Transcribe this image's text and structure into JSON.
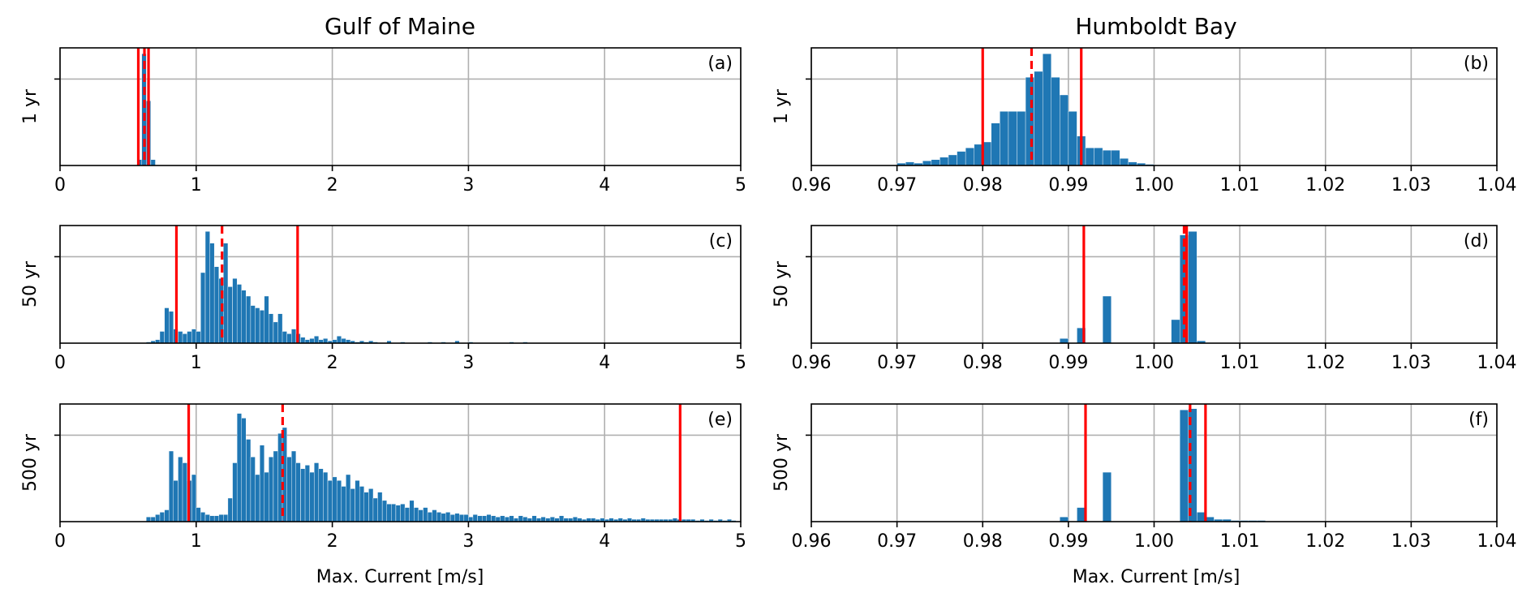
{
  "figure": {
    "columns": [
      "Gulf of Maine",
      "Humboldt Bay"
    ],
    "rows": [
      "1 yr",
      "50 yr",
      "500 yr"
    ],
    "xlabel": "Max. Current [m/s]"
  },
  "chart_data": [
    {
      "id": "a",
      "panel": "(a)",
      "location": "Gulf of Maine",
      "type": "bar",
      "ylabel": "1 yr",
      "xlim": [
        0,
        5
      ],
      "bin_width": 0.0333,
      "xticks": [
        0,
        1,
        2,
        3,
        4,
        5
      ],
      "xtick_labels": [
        "0",
        "1",
        "2",
        "3",
        "4",
        "5"
      ],
      "bar_color": "#1f77b4",
      "line_color": "#ff0000",
      "bins": [
        [
          0.567,
          0.05
        ],
        [
          0.6,
          0.95
        ],
        [
          0.633,
          0.55
        ],
        [
          0.667,
          0.05
        ]
      ],
      "solid_lines": [
        0.575,
        0.65
      ],
      "dashed_lines": [
        0.62
      ]
    },
    {
      "id": "b",
      "panel": "(b)",
      "location": "Humboldt Bay",
      "type": "bar",
      "ylabel": "1 yr",
      "xlim": [
        0.96,
        1.04
      ],
      "bin_width": 0.001,
      "xticks": [
        0.96,
        0.97,
        0.98,
        0.99,
        1.0,
        1.01,
        1.02,
        1.03,
        1.04
      ],
      "xtick_labels": [
        "0.96",
        "0.97",
        "0.98",
        "0.99",
        "1.00",
        "1.01",
        "1.02",
        "1.03",
        "1.04"
      ],
      "bar_color": "#1f77b4",
      "line_color": "#ff0000",
      "bins": [
        [
          0.97,
          0.02
        ],
        [
          0.971,
          0.03
        ],
        [
          0.972,
          0.02
        ],
        [
          0.973,
          0.04
        ],
        [
          0.974,
          0.05
        ],
        [
          0.975,
          0.07
        ],
        [
          0.976,
          0.09
        ],
        [
          0.977,
          0.12
        ],
        [
          0.978,
          0.15
        ],
        [
          0.979,
          0.18
        ],
        [
          0.98,
          0.2
        ],
        [
          0.981,
          0.36
        ],
        [
          0.982,
          0.46
        ],
        [
          0.983,
          0.46
        ],
        [
          0.984,
          0.46
        ],
        [
          0.985,
          0.75
        ],
        [
          0.986,
          0.8
        ],
        [
          0.987,
          0.95
        ],
        [
          0.988,
          0.75
        ],
        [
          0.989,
          0.6
        ],
        [
          0.99,
          0.46
        ],
        [
          0.991,
          0.25
        ],
        [
          0.992,
          0.15
        ],
        [
          0.993,
          0.15
        ],
        [
          0.994,
          0.13
        ],
        [
          0.995,
          0.13
        ],
        [
          0.996,
          0.06
        ],
        [
          0.997,
          0.03
        ],
        [
          0.998,
          0.02
        ],
        [
          0.999,
          0.01
        ]
      ],
      "solid_lines": [
        0.98,
        0.9915
      ],
      "dashed_lines": [
        0.9857
      ]
    },
    {
      "id": "c",
      "panel": "(c)",
      "location": "Gulf of Maine",
      "type": "bar",
      "ylabel": "50 yr",
      "xlim": [
        0,
        5
      ],
      "bin_width": 0.0333,
      "xticks": [
        0,
        1,
        2,
        3,
        4,
        5
      ],
      "xtick_labels": [
        "0",
        "1",
        "2",
        "3",
        "4",
        "5"
      ],
      "bar_color": "#1f77b4",
      "line_color": "#ff0000",
      "bins": [
        [
          0.633,
          0.01
        ],
        [
          0.667,
          0.02
        ],
        [
          0.7,
          0.03
        ],
        [
          0.733,
          0.1
        ],
        [
          0.767,
          0.3
        ],
        [
          0.8,
          0.27
        ],
        [
          0.833,
          0.12
        ],
        [
          0.867,
          0.1
        ],
        [
          0.9,
          0.08
        ],
        [
          0.933,
          0.1
        ],
        [
          0.967,
          0.12
        ],
        [
          1.0,
          0.1
        ],
        [
          1.033,
          0.6
        ],
        [
          1.067,
          0.95
        ],
        [
          1.1,
          0.85
        ],
        [
          1.133,
          0.65
        ],
        [
          1.167,
          0.55
        ],
        [
          1.2,
          0.85
        ],
        [
          1.233,
          0.48
        ],
        [
          1.267,
          0.55
        ],
        [
          1.3,
          0.5
        ],
        [
          1.333,
          0.45
        ],
        [
          1.367,
          0.4
        ],
        [
          1.4,
          0.32
        ],
        [
          1.433,
          0.3
        ],
        [
          1.467,
          0.28
        ],
        [
          1.5,
          0.4
        ],
        [
          1.533,
          0.25
        ],
        [
          1.567,
          0.18
        ],
        [
          1.6,
          0.25
        ],
        [
          1.633,
          0.1
        ],
        [
          1.667,
          0.08
        ],
        [
          1.7,
          0.12
        ],
        [
          1.733,
          0.08
        ],
        [
          1.767,
          0.05
        ],
        [
          1.8,
          0.03
        ],
        [
          1.833,
          0.04
        ],
        [
          1.867,
          0.06
        ],
        [
          1.9,
          0.03
        ],
        [
          1.933,
          0.04
        ],
        [
          1.967,
          0.02
        ],
        [
          2.0,
          0.03
        ],
        [
          2.033,
          0.06
        ],
        [
          2.067,
          0.04
        ],
        [
          2.1,
          0.03
        ],
        [
          2.133,
          0.02
        ],
        [
          2.167,
          0.01
        ],
        [
          2.2,
          0.02
        ],
        [
          2.233,
          0.01
        ],
        [
          2.267,
          0.02
        ],
        [
          2.3,
          0.01
        ],
        [
          2.4,
          0.02
        ],
        [
          2.5,
          0.01
        ],
        [
          2.7,
          0.01
        ],
        [
          2.8,
          0.01
        ],
        [
          2.9,
          0.02
        ],
        [
          3.0,
          0.01
        ],
        [
          3.3,
          0.01
        ],
        [
          3.4,
          0.01
        ]
      ],
      "solid_lines": [
        0.855,
        1.745
      ],
      "dashed_lines": [
        1.19
      ]
    },
    {
      "id": "d",
      "panel": "(d)",
      "location": "Humboldt Bay",
      "type": "bar",
      "ylabel": "50 yr",
      "xlim": [
        0.96,
        1.04
      ],
      "bin_width": 0.001,
      "xticks": [
        0.96,
        0.97,
        0.98,
        0.99,
        1.0,
        1.01,
        1.02,
        1.03,
        1.04
      ],
      "xtick_labels": [
        "0.96",
        "0.97",
        "0.98",
        "0.99",
        "1.00",
        "1.01",
        "1.02",
        "1.03",
        "1.04"
      ],
      "bar_color": "#1f77b4",
      "line_color": "#ff0000",
      "bins": [
        [
          0.989,
          0.04
        ],
        [
          0.991,
          0.13
        ],
        [
          0.994,
          0.4
        ],
        [
          1.002,
          0.2
        ],
        [
          1.003,
          0.92
        ],
        [
          1.004,
          0.95
        ],
        [
          1.005,
          0.02
        ]
      ],
      "solid_lines": [
        0.9918,
        1.0038
      ],
      "dashed_lines": [
        1.0035
      ]
    },
    {
      "id": "e",
      "panel": "(e)",
      "location": "Gulf of Maine",
      "type": "bar",
      "ylabel": "500 yr",
      "xlim": [
        0,
        5
      ],
      "bin_width": 0.0333,
      "xticks": [
        0,
        1,
        2,
        3,
        4,
        5
      ],
      "xtick_labels": [
        "0",
        "1",
        "2",
        "3",
        "4",
        "5"
      ],
      "bar_color": "#1f77b4",
      "line_color": "#ff0000",
      "bins": [
        [
          0.633,
          0.04
        ],
        [
          0.667,
          0.04
        ],
        [
          0.7,
          0.06
        ],
        [
          0.733,
          0.08
        ],
        [
          0.767,
          0.1
        ],
        [
          0.8,
          0.6
        ],
        [
          0.833,
          0.35
        ],
        [
          0.867,
          0.55
        ],
        [
          0.9,
          0.5
        ],
        [
          0.933,
          0.35
        ],
        [
          0.967,
          0.4
        ],
        [
          1.0,
          0.12
        ],
        [
          1.033,
          0.08
        ],
        [
          1.067,
          0.06
        ],
        [
          1.1,
          0.05
        ],
        [
          1.133,
          0.05
        ],
        [
          1.167,
          0.06
        ],
        [
          1.2,
          0.06
        ],
        [
          1.233,
          0.2
        ],
        [
          1.267,
          0.5
        ],
        [
          1.3,
          0.92
        ],
        [
          1.333,
          0.88
        ],
        [
          1.367,
          0.7
        ],
        [
          1.4,
          0.55
        ],
        [
          1.433,
          0.4
        ],
        [
          1.467,
          0.65
        ],
        [
          1.5,
          0.42
        ],
        [
          1.533,
          0.55
        ],
        [
          1.567,
          0.6
        ],
        [
          1.6,
          0.75
        ],
        [
          1.633,
          0.8
        ],
        [
          1.667,
          0.55
        ],
        [
          1.7,
          0.6
        ],
        [
          1.733,
          0.5
        ],
        [
          1.767,
          0.45
        ],
        [
          1.8,
          0.48
        ],
        [
          1.833,
          0.42
        ],
        [
          1.867,
          0.5
        ],
        [
          1.9,
          0.45
        ],
        [
          1.933,
          0.42
        ],
        [
          1.967,
          0.35
        ],
        [
          2.0,
          0.38
        ],
        [
          2.033,
          0.35
        ],
        [
          2.067,
          0.3
        ],
        [
          2.1,
          0.4
        ],
        [
          2.133,
          0.28
        ],
        [
          2.167,
          0.35
        ],
        [
          2.2,
          0.3
        ],
        [
          2.233,
          0.25
        ],
        [
          2.267,
          0.28
        ],
        [
          2.3,
          0.2
        ],
        [
          2.333,
          0.25
        ],
        [
          2.367,
          0.18
        ],
        [
          2.4,
          0.15
        ],
        [
          2.433,
          0.15
        ],
        [
          2.467,
          0.14
        ],
        [
          2.5,
          0.15
        ],
        [
          2.533,
          0.12
        ],
        [
          2.567,
          0.18
        ],
        [
          2.6,
          0.12
        ],
        [
          2.633,
          0.1
        ],
        [
          2.667,
          0.12
        ],
        [
          2.7,
          0.08
        ],
        [
          2.733,
          0.1
        ],
        [
          2.767,
          0.08
        ],
        [
          2.8,
          0.07
        ],
        [
          2.833,
          0.08
        ],
        [
          2.867,
          0.06
        ],
        [
          2.9,
          0.07
        ],
        [
          2.933,
          0.06
        ],
        [
          2.967,
          0.06
        ],
        [
          3.0,
          0.04
        ],
        [
          3.033,
          0.06
        ],
        [
          3.067,
          0.05
        ],
        [
          3.1,
          0.05
        ],
        [
          3.133,
          0.06
        ],
        [
          3.167,
          0.05
        ],
        [
          3.2,
          0.04
        ],
        [
          3.233,
          0.05
        ],
        [
          3.267,
          0.04
        ],
        [
          3.3,
          0.05
        ],
        [
          3.333,
          0.03
        ],
        [
          3.367,
          0.05
        ],
        [
          3.4,
          0.04
        ],
        [
          3.433,
          0.03
        ],
        [
          3.467,
          0.05
        ],
        [
          3.5,
          0.03
        ],
        [
          3.533,
          0.04
        ],
        [
          3.567,
          0.03
        ],
        [
          3.6,
          0.04
        ],
        [
          3.633,
          0.03
        ],
        [
          3.667,
          0.05
        ],
        [
          3.7,
          0.03
        ],
        [
          3.733,
          0.03
        ],
        [
          3.767,
          0.04
        ],
        [
          3.8,
          0.03
        ],
        [
          3.833,
          0.02
        ],
        [
          3.867,
          0.03
        ],
        [
          3.9,
          0.03
        ],
        [
          3.933,
          0.02
        ],
        [
          3.967,
          0.03
        ],
        [
          4.0,
          0.02
        ],
        [
          4.033,
          0.03
        ],
        [
          4.067,
          0.02
        ],
        [
          4.1,
          0.03
        ],
        [
          4.133,
          0.02
        ],
        [
          4.167,
          0.03
        ],
        [
          4.2,
          0.02
        ],
        [
          4.233,
          0.02
        ],
        [
          4.267,
          0.03
        ],
        [
          4.3,
          0.02
        ],
        [
          4.333,
          0.02
        ],
        [
          4.367,
          0.02
        ],
        [
          4.4,
          0.02
        ],
        [
          4.433,
          0.02
        ],
        [
          4.467,
          0.02
        ],
        [
          4.5,
          0.03
        ],
        [
          4.533,
          0.02
        ],
        [
          4.567,
          0.02
        ],
        [
          4.6,
          0.02
        ],
        [
          4.633,
          0.02
        ],
        [
          4.667,
          0.01
        ],
        [
          4.7,
          0.02
        ],
        [
          4.733,
          0.01
        ],
        [
          4.767,
          0.02
        ],
        [
          4.8,
          0.01
        ],
        [
          4.833,
          0.02
        ],
        [
          4.867,
          0.01
        ],
        [
          4.9,
          0.02
        ],
        [
          4.933,
          0.01
        ]
      ],
      "solid_lines": [
        0.945,
        4.555
      ],
      "dashed_lines": [
        1.635
      ]
    },
    {
      "id": "f",
      "panel": "(f)",
      "location": "Humboldt Bay",
      "type": "bar",
      "ylabel": "500 yr",
      "xlim": [
        0.96,
        1.04
      ],
      "bin_width": 0.001,
      "xticks": [
        0.96,
        0.97,
        0.98,
        0.99,
        1.0,
        1.01,
        1.02,
        1.03,
        1.04
      ],
      "xtick_labels": [
        "0.96",
        "0.97",
        "0.98",
        "0.99",
        "1.00",
        "1.01",
        "1.02",
        "1.03",
        "1.04"
      ],
      "bar_color": "#1f77b4",
      "line_color": "#ff0000",
      "bins": [
        [
          0.989,
          0.04
        ],
        [
          0.991,
          0.12
        ],
        [
          0.994,
          0.42
        ],
        [
          1.003,
          0.95
        ],
        [
          1.004,
          0.96
        ],
        [
          1.005,
          0.08
        ],
        [
          1.006,
          0.04
        ],
        [
          1.007,
          0.02
        ],
        [
          1.008,
          0.02
        ],
        [
          1.009,
          0.01
        ],
        [
          1.01,
          0.01
        ],
        [
          1.011,
          0.01
        ],
        [
          1.012,
          0.01
        ]
      ],
      "solid_lines": [
        0.992,
        1.006
      ],
      "dashed_lines": [
        1.0042
      ]
    }
  ]
}
